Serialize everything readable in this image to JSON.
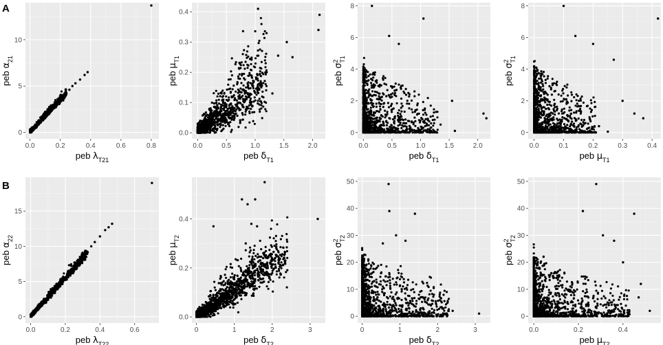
{
  "panel_labels": [
    "A",
    "B"
  ],
  "colors": {
    "panel_background": "#ebebeb",
    "gridline": "#ffffff",
    "point": "#000000"
  },
  "chart_data": [
    {
      "type": "scatter",
      "row": "A",
      "xlabel": {
        "prefix": "peb ",
        "symbol": "λ",
        "sub": "T21",
        "sup": ""
      },
      "ylabel": {
        "prefix": "peb ",
        "symbol": "α",
        "sub": "21",
        "sup": ""
      },
      "xlim": [
        -0.03,
        0.85
      ],
      "ylim": [
        -0.7,
        14.0
      ],
      "xticks": [
        0.0,
        0.2,
        0.4,
        0.6,
        0.8
      ],
      "xtick_labels": [
        "0.0",
        "0.2",
        "0.4",
        "0.6",
        "0.8"
      ],
      "yticks": [
        0,
        5,
        10
      ],
      "ytick_labels": [
        "0",
        "5",
        "10"
      ],
      "points": [
        [
          0.8,
          13.7
        ],
        [
          0.38,
          6.5
        ],
        [
          0.36,
          6.2
        ],
        [
          0.33,
          5.7
        ],
        [
          0.3,
          5.3
        ],
        [
          0.28,
          5.0
        ],
        [
          0.26,
          4.6
        ],
        [
          0.24,
          4.3
        ]
      ],
      "cloud": {
        "kind": "linear",
        "xmax": 0.24,
        "slope": 17.5,
        "noise": 0.25,
        "n": 1100,
        "density": 2.4
      }
    },
    {
      "type": "scatter",
      "row": "A",
      "xlabel": {
        "prefix": "peb ",
        "symbol": "δ",
        "sub": "T1",
        "sup": ""
      },
      "ylabel": {
        "prefix": "peb ",
        "symbol": "μ",
        "sub": "T1",
        "sup": ""
      },
      "xlim": [
        -0.1,
        2.22
      ],
      "ylim": [
        -0.02,
        0.43
      ],
      "xticks": [
        0.0,
        0.5,
        1.0,
        1.5,
        2.0
      ],
      "xtick_labels": [
        "0.0",
        "0.5",
        "1.0",
        "1.5",
        "2.0"
      ],
      "yticks": [
        0.0,
        0.1,
        0.2,
        0.3,
        0.4
      ],
      "ytick_labels": [
        "0.0",
        "0.1",
        "0.2",
        "0.3",
        "0.4"
      ],
      "points": [
        [
          1.05,
          0.41
        ],
        [
          2.12,
          0.39
        ],
        [
          2.1,
          0.34
        ],
        [
          1.55,
          0.3
        ],
        [
          1.4,
          0.255
        ],
        [
          1.65,
          0.25
        ],
        [
          1.3,
          0.13
        ],
        [
          1.2,
          0.2
        ]
      ],
      "cloud": {
        "kind": "linear",
        "xmax": 1.2,
        "slope": 0.145,
        "noise": 0.025,
        "n": 1300,
        "density": 2.6
      }
    },
    {
      "type": "scatter",
      "row": "A",
      "xlabel": {
        "prefix": "peb ",
        "symbol": "δ",
        "sub": "T1",
        "sup": ""
      },
      "ylabel": {
        "prefix": "peb ",
        "symbol": "σ",
        "sub": "T1",
        "sup": "2"
      },
      "xlim": [
        -0.1,
        2.22
      ],
      "ylim": [
        -0.4,
        8.2
      ],
      "xticks": [
        0.0,
        0.5,
        1.0,
        1.5,
        2.0
      ],
      "xtick_labels": [
        "0.0",
        "0.5",
        "1.0",
        "1.5",
        "2.0"
      ],
      "yticks": [
        0,
        2,
        4,
        6,
        8
      ],
      "ytick_labels": [
        "0",
        "2",
        "4",
        "6",
        "8"
      ],
      "points": [
        [
          0.15,
          8.0
        ],
        [
          1.05,
          7.2
        ],
        [
          0.45,
          6.1
        ],
        [
          0.62,
          5.6
        ],
        [
          1.6,
          0.1
        ],
        [
          2.1,
          1.2
        ],
        [
          2.15,
          0.9
        ],
        [
          1.55,
          2.0
        ],
        [
          1.35,
          0.5
        ]
      ],
      "cloud": {
        "kind": "decay",
        "xmax": 1.3,
        "ymax": 4.2,
        "n": 1300,
        "density": 4.0
      }
    },
    {
      "type": "scatter",
      "row": "A",
      "xlabel": {
        "prefix": "peb ",
        "symbol": "μ",
        "sub": "T1",
        "sup": ""
      },
      "ylabel": {
        "prefix": "peb ",
        "symbol": "σ",
        "sub": "T1",
        "sup": "2"
      },
      "xlim": [
        -0.02,
        0.43
      ],
      "ylim": [
        -0.4,
        8.2
      ],
      "xticks": [
        0.0,
        0.1,
        0.2,
        0.3,
        0.4
      ],
      "xtick_labels": [
        "0.0",
        "0.1",
        "0.2",
        "0.3",
        "0.4"
      ],
      "yticks": [
        0,
        2,
        4,
        6,
        8
      ],
      "ytick_labels": [
        "0",
        "2",
        "4",
        "6",
        "8"
      ],
      "points": [
        [
          0.1,
          8.0
        ],
        [
          0.42,
          7.2
        ],
        [
          0.14,
          6.1
        ],
        [
          0.2,
          5.6
        ],
        [
          0.27,
          4.6
        ],
        [
          0.25,
          0.05
        ],
        [
          0.34,
          1.2
        ],
        [
          0.37,
          0.9
        ],
        [
          0.3,
          2.0
        ],
        [
          0.22,
          0.4
        ]
      ],
      "cloud": {
        "kind": "decay",
        "xmax": 0.21,
        "ymax": 4.2,
        "n": 1300,
        "density": 4.0
      }
    },
    {
      "type": "scatter",
      "row": "B",
      "xlabel": {
        "prefix": "peb ",
        "symbol": "λ",
        "sub": "T22",
        "sup": ""
      },
      "ylabel": {
        "prefix": "peb ",
        "symbol": "α",
        "sub": "22",
        "sup": ""
      },
      "xlim": [
        -0.03,
        0.74
      ],
      "ylim": [
        -0.9,
        19.8
      ],
      "xticks": [
        0.0,
        0.2,
        0.4,
        0.6
      ],
      "xtick_labels": [
        "0.0",
        "0.2",
        "0.4",
        "0.6"
      ],
      "yticks": [
        0,
        5,
        10,
        15
      ],
      "ytick_labels": [
        "0",
        "5",
        "10",
        "15"
      ],
      "points": [
        [
          0.7,
          19.0
        ],
        [
          0.47,
          13.2
        ],
        [
          0.45,
          12.7
        ],
        [
          0.43,
          12.3
        ],
        [
          0.4,
          11.4
        ],
        [
          0.37,
          10.6
        ],
        [
          0.35,
          10.0
        ]
      ],
      "cloud": {
        "kind": "linear",
        "xmax": 0.33,
        "slope": 27.5,
        "noise": 0.35,
        "n": 1100,
        "density": 2.2
      }
    },
    {
      "type": "scatter",
      "row": "B",
      "xlabel": {
        "prefix": "peb ",
        "symbol": "δ",
        "sub": "T2",
        "sup": ""
      },
      "ylabel": {
        "prefix": "peb ",
        "symbol": "μ",
        "sub": "T2",
        "sup": ""
      },
      "xlim": [
        -0.12,
        3.4
      ],
      "ylim": [
        -0.025,
        0.57
      ],
      "xticks": [
        0,
        1,
        2,
        3
      ],
      "xtick_labels": [
        "0",
        "1",
        "2",
        "3"
      ],
      "yticks": [
        0.0,
        0.2,
        0.4
      ],
      "ytick_labels": [
        "0.0",
        "0.2",
        "0.4"
      ],
      "points": [
        [
          1.8,
          0.55
        ],
        [
          1.2,
          0.48
        ],
        [
          1.35,
          0.46
        ],
        [
          1.55,
          0.48
        ],
        [
          1.45,
          0.38
        ],
        [
          1.6,
          0.37
        ],
        [
          3.2,
          0.4
        ],
        [
          0.45,
          0.37
        ],
        [
          1.3,
          0.3
        ]
      ],
      "cloud": {
        "kind": "linear2",
        "xmax": 2.4,
        "slope": 0.11,
        "noise": 0.03,
        "n": 1500,
        "density": 2.4
      }
    },
    {
      "type": "scatter",
      "row": "B",
      "xlabel": {
        "prefix": "peb ",
        "symbol": "δ",
        "sub": "T2",
        "sup": ""
      },
      "ylabel": {
        "prefix": "peb ",
        "symbol": "σ",
        "sub": "T2",
        "sup": "2"
      },
      "xlim": [
        -0.12,
        3.4
      ],
      "ylim": [
        -2.5,
        51.5
      ],
      "xticks": [
        0,
        1,
        2,
        3
      ],
      "xtick_labels": [
        "0",
        "1",
        "2",
        "3"
      ],
      "yticks": [
        0,
        10,
        20,
        30,
        40,
        50
      ],
      "ytick_labels": [
        "0",
        "10",
        "20",
        "30",
        "40",
        "50"
      ],
      "points": [
        [
          0.7,
          49.0
        ],
        [
          0.72,
          39.0
        ],
        [
          1.4,
          38.0
        ],
        [
          0.9,
          30.0
        ],
        [
          1.15,
          28.0
        ],
        [
          0.55,
          27.0
        ],
        [
          3.1,
          1.0
        ],
        [
          2.4,
          2.0
        ],
        [
          1.9,
          8.0
        ]
      ],
      "cloud": {
        "kind": "decay",
        "xmax": 2.3,
        "ymax": 22.0,
        "n": 1500,
        "density": 4.5
      }
    },
    {
      "type": "scatter",
      "row": "B",
      "xlabel": {
        "prefix": "peb ",
        "symbol": "μ",
        "sub": "T2",
        "sup": ""
      },
      "ylabel": {
        "prefix": "peb ",
        "symbol": "σ",
        "sub": "T2",
        "sup": "2"
      },
      "xlim": [
        -0.025,
        0.57
      ],
      "ylim": [
        -2.5,
        51.5
      ],
      "xticks": [
        0.0,
        0.2,
        0.4
      ],
      "xtick_labels": [
        "0.0",
        "0.2",
        "0.4"
      ],
      "yticks": [
        0,
        10,
        20,
        30,
        40,
        50
      ],
      "ytick_labels": [
        "0",
        "10",
        "20",
        "30",
        "40",
        "50"
      ],
      "points": [
        [
          0.28,
          49.0
        ],
        [
          0.22,
          39.0
        ],
        [
          0.45,
          38.0
        ],
        [
          0.31,
          30.0
        ],
        [
          0.36,
          28.0
        ],
        [
          0.4,
          20.0
        ],
        [
          0.47,
          7.0
        ],
        [
          0.52,
          2.0
        ],
        [
          0.48,
          12.0
        ]
      ],
      "cloud": {
        "kind": "decay",
        "xmax": 0.43,
        "ymax": 22.0,
        "n": 1500,
        "density": 4.5
      }
    }
  ]
}
